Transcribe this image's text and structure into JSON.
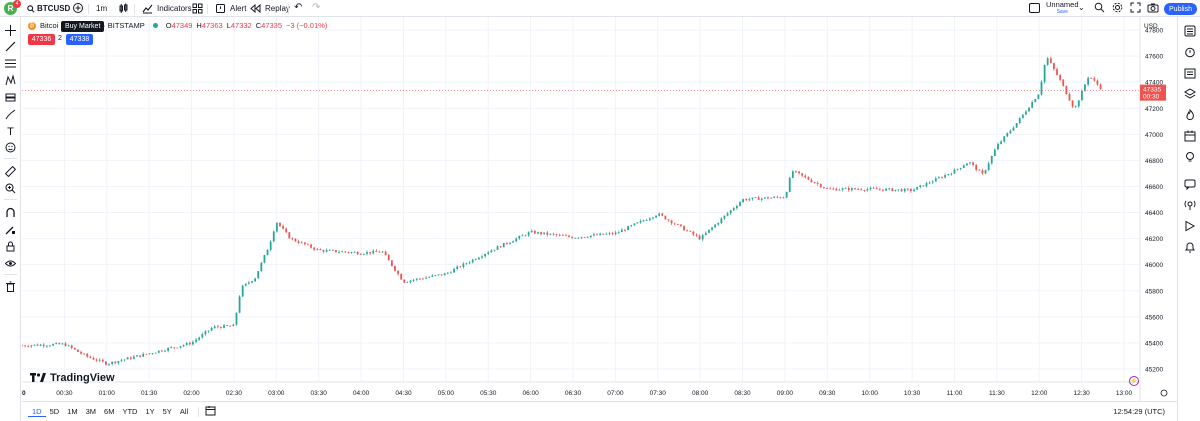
{
  "topbar": {
    "avatar_letter": "R",
    "avatar_badge": "4",
    "symbol": "BTCUSD",
    "interval": "1m",
    "indicators_label": "Indicators",
    "alert_label": "Alert",
    "replay_label": "Replay",
    "layout_name": "Unnamed",
    "layout_sub": "Save",
    "publish_label": "Publish"
  },
  "legend": {
    "title": "Bitcoi",
    "title_tail": "· 1 · BITSTAMP",
    "open_label": "O",
    "open": "47349",
    "high_label": "H",
    "high": "47363",
    "low_label": "L",
    "low": "47332",
    "close_label": "C",
    "close": "47335",
    "change": "−3 (−0.01%)"
  },
  "tooltip": "Buy Market",
  "sell_price": "47336",
  "spread": "2",
  "buy_price": "47338",
  "price_axis": {
    "currency": "USD",
    "ticks": [
      "47800",
      "47600",
      "47400",
      "47200",
      "47000",
      "46800",
      "46600",
      "46400",
      "46200",
      "46000",
      "45800",
      "45600",
      "45400",
      "45200"
    ],
    "last_price": "47335",
    "countdown": "00:30"
  },
  "time_axis": {
    "ticks": [
      "00:30",
      "01:00",
      "01:30",
      "02:00",
      "02:30",
      "03:00",
      "03:30",
      "04:00",
      "04:30",
      "05:00",
      "05:30",
      "06:00",
      "06:30",
      "07:00",
      "07:30",
      "08:00",
      "08:30",
      "09:00",
      "09:30",
      "10:00",
      "10:30",
      "11:00",
      "11:30",
      "12:00",
      "12:30",
      "13:00"
    ],
    "start_tick": "0"
  },
  "logo_text": "TradingView",
  "bottom": {
    "ranges": [
      "1D",
      "5D",
      "1M",
      "3M",
      "6M",
      "YTD",
      "1Y",
      "5Y",
      "All"
    ],
    "active_range": "1D",
    "clock": "12:54:29 (UTC)"
  },
  "colors": {
    "up": "#26a69a",
    "down": "#ef5350",
    "accent": "#2962ff",
    "sell": "#f23645",
    "grid": "#f0f3fa"
  },
  "chart_data": {
    "type": "candlestick",
    "y_range": [
      45100,
      47900
    ],
    "x_ticks": [
      "00:30",
      "01:00",
      "01:30",
      "02:00",
      "02:30",
      "03:00",
      "03:30",
      "04:00",
      "04:30",
      "05:00",
      "05:30",
      "06:00",
      "06:30",
      "07:00",
      "07:30",
      "08:00",
      "08:30",
      "09:00",
      "09:30",
      "10:00",
      "10:30",
      "11:00",
      "11:30",
      "12:00",
      "12:30",
      "13:00"
    ],
    "price_path": [
      [
        "00:00",
        45380
      ],
      [
        "00:30",
        45390
      ],
      [
        "00:45",
        45300
      ],
      [
        "01:00",
        45240
      ],
      [
        "01:30",
        45320
      ],
      [
        "02:00",
        45400
      ],
      [
        "02:15",
        45520
      ],
      [
        "02:30",
        45530
      ],
      [
        "02:35",
        45820
      ],
      [
        "02:45",
        45900
      ],
      [
        "02:55",
        46150
      ],
      [
        "03:00",
        46330
      ],
      [
        "03:10",
        46200
      ],
      [
        "03:30",
        46110
      ],
      [
        "04:00",
        46090
      ],
      [
        "04:15",
        46100
      ],
      [
        "04:30",
        45870
      ],
      [
        "05:00",
        45930
      ],
      [
        "05:30",
        46100
      ],
      [
        "06:00",
        46250
      ],
      [
        "06:30",
        46210
      ],
      [
        "07:00",
        46240
      ],
      [
        "07:30",
        46390
      ],
      [
        "08:00",
        46200
      ],
      [
        "08:30",
        46500
      ],
      [
        "09:00",
        46520
      ],
      [
        "09:05",
        46720
      ],
      [
        "09:30",
        46580
      ],
      [
        "10:00",
        46580
      ],
      [
        "10:30",
        46570
      ],
      [
        "11:00",
        46720
      ],
      [
        "11:10",
        46790
      ],
      [
        "11:20",
        46690
      ],
      [
        "11:30",
        46910
      ],
      [
        "11:45",
        47100
      ],
      [
        "12:00",
        47320
      ],
      [
        "12:05",
        47600
      ],
      [
        "12:15",
        47410
      ],
      [
        "12:25",
        47190
      ],
      [
        "12:35",
        47450
      ],
      [
        "12:45",
        47340
      ]
    ],
    "last_price": 47335
  }
}
